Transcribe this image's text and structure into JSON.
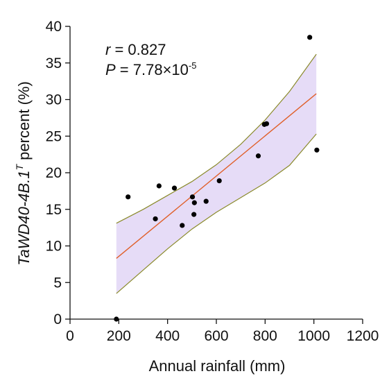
{
  "chart_data": {
    "type": "scatter",
    "xlabel": "Annual rainfall (mm)",
    "ylabel": {
      "main": "TaWD40-4B.1",
      "superscript": "T",
      "rest": " percent (%)"
    },
    "xlim": [
      0,
      1200
    ],
    "ylim": [
      0,
      40
    ],
    "x_ticks": [
      0,
      200,
      400,
      600,
      800,
      1000,
      1200
    ],
    "y_ticks": [
      0,
      5,
      10,
      15,
      20,
      25,
      30,
      35,
      40
    ],
    "points": [
      {
        "x": 190,
        "y": 0.0
      },
      {
        "x": 238,
        "y": 16.7
      },
      {
        "x": 350,
        "y": 13.7
      },
      {
        "x": 365,
        "y": 18.2
      },
      {
        "x": 428,
        "y": 17.9
      },
      {
        "x": 460,
        "y": 12.8
      },
      {
        "x": 502,
        "y": 16.7
      },
      {
        "x": 508,
        "y": 14.3
      },
      {
        "x": 510,
        "y": 15.9
      },
      {
        "x": 558,
        "y": 16.1
      },
      {
        "x": 612,
        "y": 18.9
      },
      {
        "x": 772,
        "y": 22.3
      },
      {
        "x": 797,
        "y": 26.6
      },
      {
        "x": 806,
        "y": 26.7
      },
      {
        "x": 983,
        "y": 38.5
      },
      {
        "x": 1012,
        "y": 23.1
      }
    ],
    "regression": {
      "x": [
        190,
        1010
      ],
      "y": [
        8.3,
        30.8
      ]
    },
    "confidence_band": {
      "x": [
        190,
        300,
        400,
        500,
        600,
        700,
        800,
        900,
        1010
      ],
      "upper": [
        13.1,
        15.0,
        16.9,
        18.8,
        21.1,
        23.9,
        27.2,
        31.1,
        36.2
      ],
      "lower": [
        3.5,
        6.7,
        9.6,
        12.3,
        14.6,
        16.6,
        18.6,
        21.0,
        25.3
      ]
    },
    "annotations": {
      "r_symbol": "r",
      "r_value": " = 0.827",
      "p_symbol": "P",
      "p_value": " = 7.78×10",
      "p_exponent": "-5"
    },
    "colors": {
      "points": "#000000",
      "regression_line": "#e0602a",
      "band_fill": "#e6dcf7",
      "band_edge": "#8a8a2a",
      "axis": "#111111"
    }
  }
}
